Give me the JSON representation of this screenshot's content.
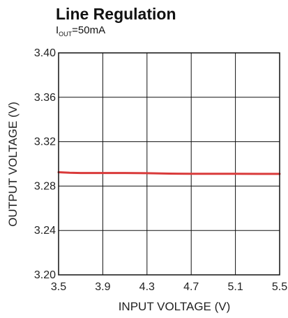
{
  "chart_data": {
    "type": "line",
    "title": "Line Regulation",
    "subtitle": {
      "prefix": "I",
      "subscript": "OUT",
      "suffix": "=50mA"
    },
    "xlabel": "INPUT VOLTAGE (V)",
    "ylabel": "OUTPUT VOLTAGE (V)",
    "xlim": [
      3.5,
      5.5
    ],
    "ylim": [
      3.2,
      3.4
    ],
    "xticks": [
      "3.5",
      "3.9",
      "4.3",
      "4.7",
      "5.1",
      "5.5"
    ],
    "yticks": [
      "3.40",
      "3.36",
      "3.32",
      "3.28",
      "3.24",
      "3.20"
    ],
    "grid": true,
    "series": [
      {
        "color": "#d93a3a",
        "x": [
          3.5,
          3.6,
          3.7,
          3.9,
          4.1,
          4.3,
          4.5,
          4.7,
          4.9,
          5.1,
          5.3,
          5.5
        ],
        "y": [
          3.2925,
          3.292,
          3.2918,
          3.2918,
          3.2918,
          3.2916,
          3.2912,
          3.2911,
          3.2911,
          3.2911,
          3.291,
          3.291
        ]
      }
    ]
  }
}
